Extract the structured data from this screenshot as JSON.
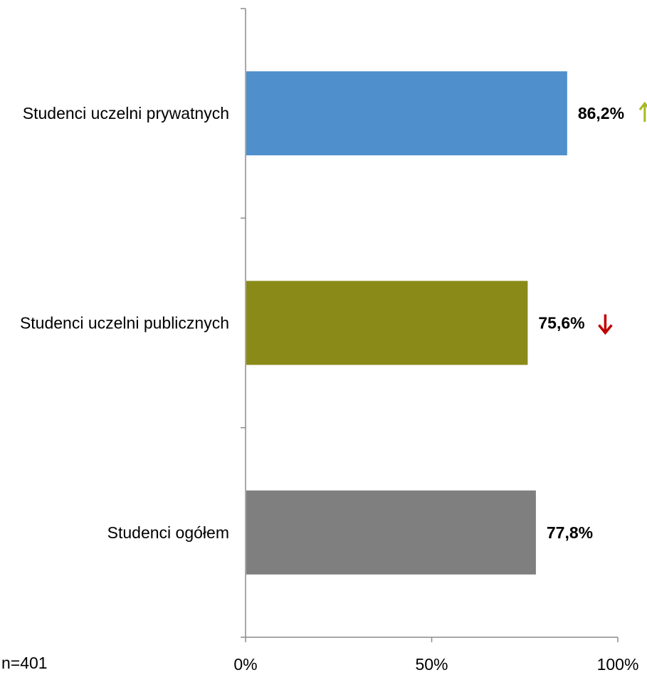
{
  "note": "n=401",
  "chart_data": {
    "type": "bar",
    "orientation": "horizontal",
    "categories": [
      "Studenci uczelni prywatnych",
      "Studenci uczelni publicznych",
      "Studenci ogółem"
    ],
    "values": [
      86.2,
      75.6,
      77.8
    ],
    "value_labels": [
      "86,2%",
      "75,6%",
      "77,8%"
    ],
    "colors": [
      "#4f8fcc",
      "#8a8a18",
      "#7f7f7f"
    ],
    "markers": [
      {
        "type": "arrow-up",
        "color": "#a8b820"
      },
      {
        "type": "arrow-down",
        "color": "#c00000"
      },
      null
    ],
    "xlim": [
      0,
      100
    ],
    "x_ticks": [
      0,
      50,
      100
    ],
    "x_tick_labels": [
      "0%",
      "50%",
      "100%"
    ],
    "title": "",
    "xlabel": "",
    "ylabel": "",
    "grid": false,
    "legend": "none"
  }
}
